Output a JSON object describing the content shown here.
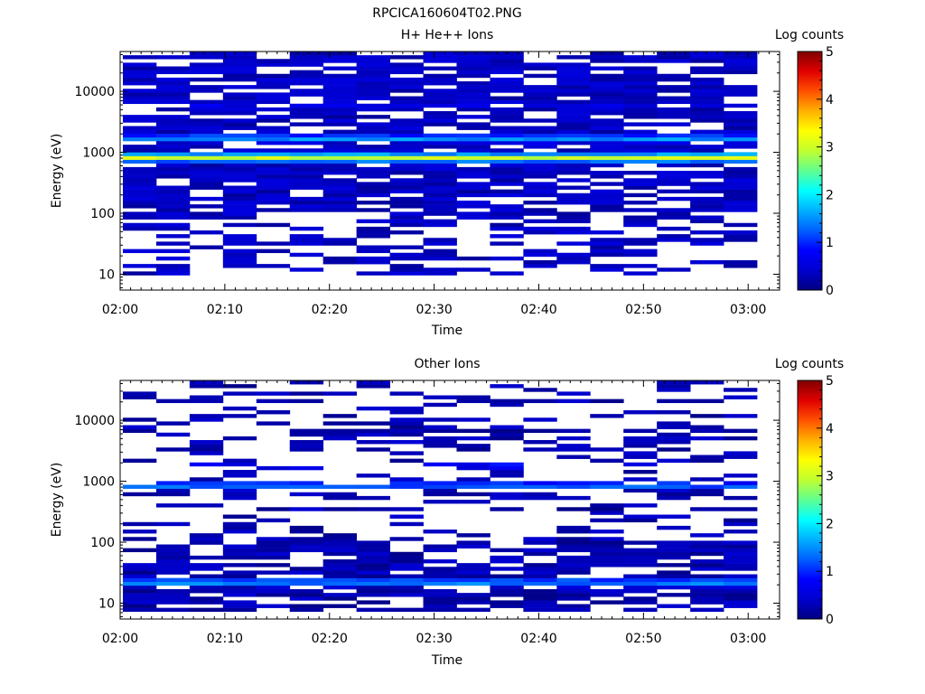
{
  "figure_title": "RPCICA160604T02.PNG",
  "colors": {
    "colormap": [
      "#00007f",
      "#0000d0",
      "#0000ff",
      "#0060ff",
      "#00b0ff",
      "#00ffff",
      "#60ff90",
      "#c0ff30",
      "#ffff00",
      "#ffb000",
      "#ff5000",
      "#e00000",
      "#7f0000"
    ],
    "background": "#ffffff",
    "axes": "#000000"
  },
  "chart_data": [
    {
      "type": "heatmap",
      "title": "H+ He++ Ions",
      "xlabel": "Time",
      "ylabel": "Energy (eV)",
      "x_ticks": [
        "02:00",
        "02:10",
        "02:20",
        "02:30",
        "02:40",
        "02:50",
        "03:00"
      ],
      "x_range_minutes": [
        0,
        63
      ],
      "yscale": "log",
      "y_ticks": [
        "10",
        "100",
        "1000",
        "10000"
      ],
      "ylim": [
        5.5,
        45000
      ],
      "time_bins": 19,
      "energy_bins": 64,
      "colorbar": {
        "label": "Log counts",
        "ticks": [
          "0",
          "1",
          "2",
          "3",
          "4",
          "5"
        ],
        "range": [
          0,
          5
        ]
      },
      "profile": {
        "peaks": [
          {
            "energy_eV": 820,
            "log_counts": 3.0
          },
          {
            "energy_eV": 1700,
            "log_counts": 1.6
          },
          {
            "energy_eV": 6000,
            "log_counts": 0.6
          }
        ],
        "background_log_counts": 0.35,
        "min_detectable_eV": 10,
        "coverage_above_100eV": 0.78,
        "coverage_below_100eV": 0.45
      }
    },
    {
      "type": "heatmap",
      "title": "Other Ions",
      "xlabel": "Time",
      "ylabel": "Energy (eV)",
      "x_ticks": [
        "02:00",
        "02:10",
        "02:20",
        "02:30",
        "02:40",
        "02:50",
        "03:00"
      ],
      "x_range_minutes": [
        0,
        63
      ],
      "yscale": "log",
      "y_ticks": [
        "10",
        "100",
        "1000",
        "10000"
      ],
      "ylim": [
        5.5,
        45000
      ],
      "time_bins": 19,
      "energy_bins": 64,
      "colorbar": {
        "label": "Log counts",
        "ticks": [
          "0",
          "1",
          "2",
          "3",
          "4",
          "5"
        ],
        "range": [
          0,
          5
        ]
      },
      "profile": {
        "peaks": [
          {
            "energy_eV": 850,
            "log_counts": 1.3
          },
          {
            "energy_eV": 22,
            "log_counts": 1.5
          },
          {
            "energy_eV": 1800,
            "log_counts": 0.8
          }
        ],
        "background_log_counts": 0.25,
        "min_detectable_eV": 7,
        "coverage_above_100eV": 0.3,
        "coverage_below_100eV": 0.7
      }
    }
  ]
}
